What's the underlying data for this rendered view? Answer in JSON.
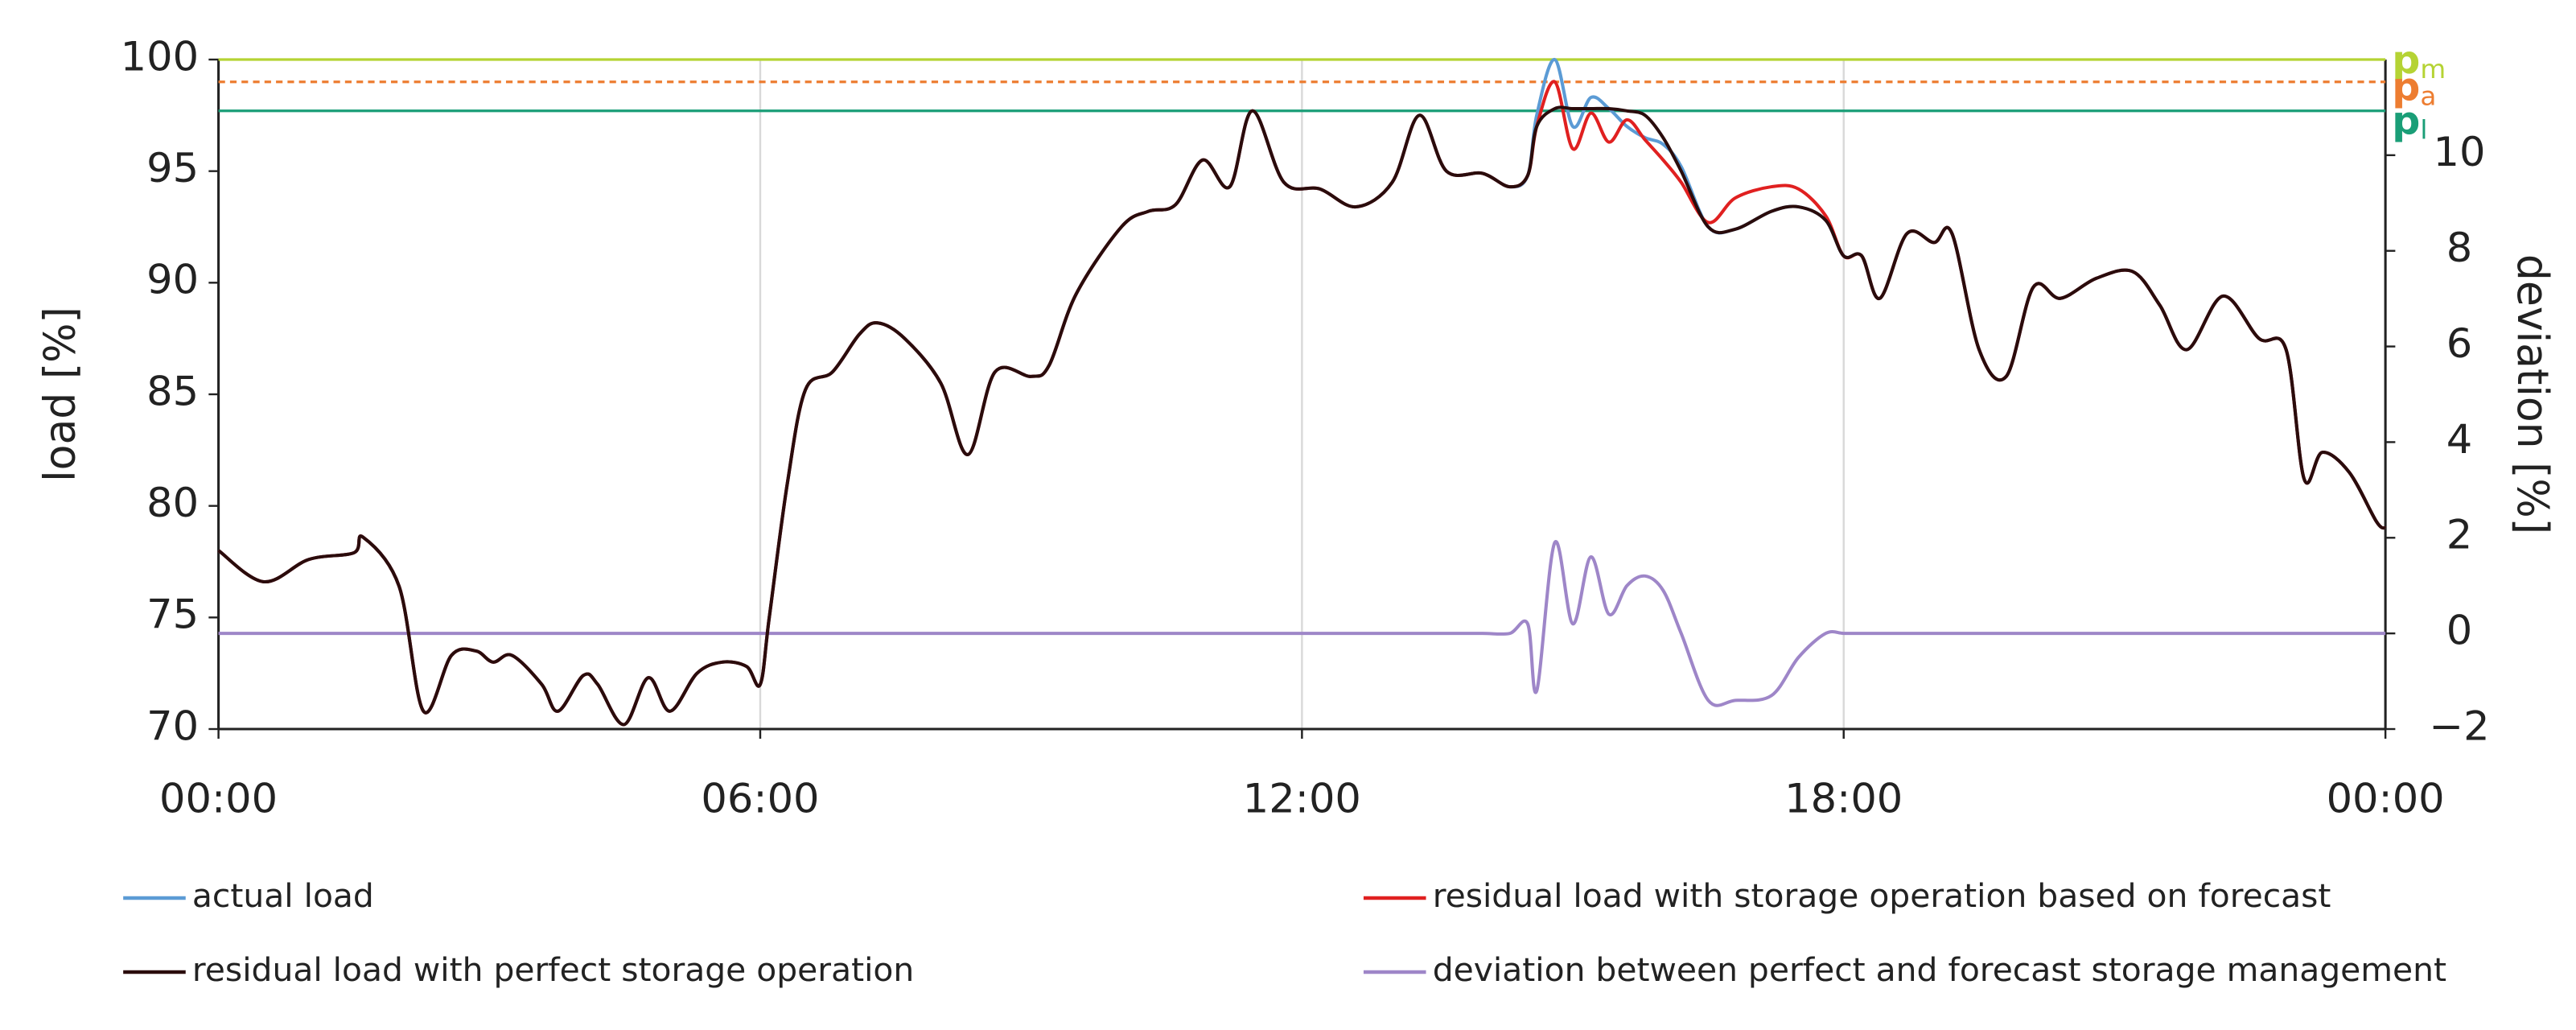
{
  "chart_data": {
    "type": "line",
    "ylabel": "load [%]",
    "y2label": "deviation [%]",
    "x": [
      0,
      0.5,
      1,
      1.5,
      1.6,
      2,
      2.27,
      2.58,
      2.85,
      3.04,
      3.25,
      3.58,
      3.76,
      4.04,
      4.2,
      4.49,
      4.76,
      5,
      5.3,
      5.58,
      5.85,
      6,
      6.1,
      6.3,
      6.5,
      6.8,
      7.1,
      7.3,
      7.6,
      8,
      8.3,
      8.6,
      9,
      9.2,
      9.5,
      10,
      10.3,
      10.6,
      10.9,
      11.2,
      11.45,
      11.8,
      12.2,
      12.6,
      13,
      13.3,
      13.6,
      14,
      14.3,
      14.5,
      14.6,
      14.8,
      15,
      15.2,
      15.4,
      15.6,
      15.8,
      16,
      16.2,
      16.5,
      16.8,
      17.2,
      17.5,
      17.8,
      18,
      18.2,
      18.4,
      18.7,
      19,
      19.2,
      19.5,
      19.8,
      20.1,
      20.4,
      20.8,
      21.2,
      21.5,
      21.8,
      22.2,
      22.6,
      22.9,
      23.1,
      23.3,
      23.6,
      23.9,
      24
    ],
    "xlim": [
      0,
      24
    ],
    "xticks": [
      {
        "value": 0,
        "label": "00:00"
      },
      {
        "value": 6,
        "label": "06:00"
      },
      {
        "value": 12,
        "label": "12:00"
      },
      {
        "value": 18,
        "label": "18:00"
      },
      {
        "value": 24,
        "label": "00:00"
      }
    ],
    "ylim": [
      70,
      100
    ],
    "yticks": [
      70,
      75,
      80,
      85,
      90,
      95,
      100
    ],
    "y2lim": [
      -2,
      12
    ],
    "y2ticks": [
      {
        "value": -2,
        "label": "−2"
      },
      0,
      2,
      4,
      6,
      8,
      10
    ],
    "grid": "x",
    "reference_lines": [
      {
        "name": "p",
        "subscript": "m",
        "value": 100,
        "color": "#b5d334",
        "dashed": false
      },
      {
        "name": "p",
        "subscript": "a",
        "value": 99,
        "color": "#ed7d31",
        "dashed": true
      },
      {
        "name": "p",
        "subscript": "l",
        "value": 97.7,
        "color": "#1a9e77",
        "dashed": false
      }
    ],
    "series": [
      {
        "name": "actual load",
        "color": "#5b9bd5",
        "values": [
          78,
          76.6,
          77.6,
          77.9,
          78.6,
          76.4,
          70.8,
          73.3,
          73.5,
          73,
          73.3,
          72,
          70.8,
          72.4,
          72,
          70.2,
          72.3,
          70.8,
          72.5,
          73,
          72.8,
          72,
          75,
          81,
          85.2,
          86,
          87.7,
          88.2,
          87.5,
          85.5,
          82.3,
          86,
          85.8,
          86.3,
          89.5,
          92.5,
          93.2,
          93.5,
          95.5,
          94.3,
          97.7,
          94.5,
          94.2,
          93.4,
          94.5,
          97.5,
          95,
          94.9,
          94.3,
          94.8,
          97.5,
          100,
          97,
          98.3,
          97.8,
          97,
          96.5,
          96.2,
          95.2,
          92.5,
          92.4,
          93.2,
          93.4,
          92.8,
          91.2,
          91.2,
          89.3,
          92.2,
          91.8,
          92.2,
          87,
          85.8,
          89.8,
          89.3,
          90.2,
          90.5,
          89,
          87,
          89.4,
          87.5,
          87,
          81.2,
          82.4,
          81.5,
          79.3,
          79
        ]
      },
      {
        "name": "residual load with storage operation based on forecast",
        "color": "#e02020",
        "values": [
          78,
          76.6,
          77.6,
          77.9,
          78.6,
          76.4,
          70.8,
          73.3,
          73.5,
          73,
          73.3,
          72,
          70.8,
          72.4,
          72,
          70.2,
          72.3,
          70.8,
          72.5,
          73,
          72.8,
          72,
          75,
          81,
          85.2,
          86,
          87.7,
          88.2,
          87.5,
          85.5,
          82.3,
          86,
          85.8,
          86.3,
          89.5,
          92.5,
          93.2,
          93.5,
          95.5,
          94.3,
          97.7,
          94.5,
          94.2,
          93.4,
          94.5,
          97.5,
          95,
          94.9,
          94.3,
          94.8,
          97,
          99,
          96,
          97.6,
          96.3,
          97.3,
          96.4,
          95.5,
          94.5,
          92.7,
          93.8,
          94.3,
          94.2,
          93,
          91.2,
          91.2,
          89.3,
          92.2,
          91.8,
          92.2,
          87,
          85.8,
          89.8,
          89.3,
          90.2,
          90.5,
          89,
          87,
          89.4,
          87.5,
          87,
          81.2,
          82.4,
          81.5,
          79.3,
          79
        ]
      },
      {
        "name": "residual load with perfect storage operation",
        "color": "#2a0c0c",
        "values": [
          78,
          76.6,
          77.6,
          77.9,
          78.6,
          76.4,
          70.8,
          73.3,
          73.5,
          73,
          73.3,
          72,
          70.8,
          72.4,
          72,
          70.2,
          72.3,
          70.8,
          72.5,
          73,
          72.8,
          72,
          75,
          81,
          85.2,
          86,
          87.7,
          88.2,
          87.5,
          85.5,
          82.3,
          86,
          85.8,
          86.3,
          89.5,
          92.5,
          93.2,
          93.5,
          95.5,
          94.3,
          97.7,
          94.5,
          94.2,
          93.4,
          94.5,
          97.5,
          95,
          94.9,
          94.3,
          94.8,
          97,
          97.8,
          97.8,
          97.8,
          97.8,
          97.7,
          97.5,
          96.5,
          95,
          92.5,
          92.4,
          93.2,
          93.4,
          92.8,
          91.2,
          91.2,
          89.3,
          92.2,
          91.8,
          92.2,
          87,
          85.8,
          89.8,
          89.3,
          90.2,
          90.5,
          89,
          87,
          89.4,
          87.5,
          87,
          81.2,
          82.4,
          81.5,
          79.3,
          79
        ]
      },
      {
        "name": "deviation between perfect and forecast storage management",
        "color": "#9e86c8",
        "axis": "y2",
        "values": [
          0,
          0,
          0,
          0,
          0,
          0,
          0,
          0,
          0,
          0,
          0,
          0,
          0,
          0,
          0,
          0,
          0,
          0,
          0,
          0,
          0,
          0,
          0,
          0,
          0,
          0,
          0,
          0,
          0,
          0,
          0,
          0,
          0,
          0,
          0,
          0,
          0,
          0,
          0,
          0,
          0,
          0,
          0,
          0,
          0,
          0,
          0,
          0,
          0,
          0.2,
          -1.2,
          1.9,
          0.2,
          1.6,
          0.4,
          1,
          1.2,
          0.9,
          0,
          -1.4,
          -1.4,
          -1.3,
          -0.5,
          0,
          0,
          0,
          0,
          0,
          0,
          0,
          0,
          0,
          0,
          0,
          0,
          0,
          0,
          0,
          0,
          0,
          0,
          0,
          0,
          0,
          0,
          0
        ]
      }
    ]
  }
}
